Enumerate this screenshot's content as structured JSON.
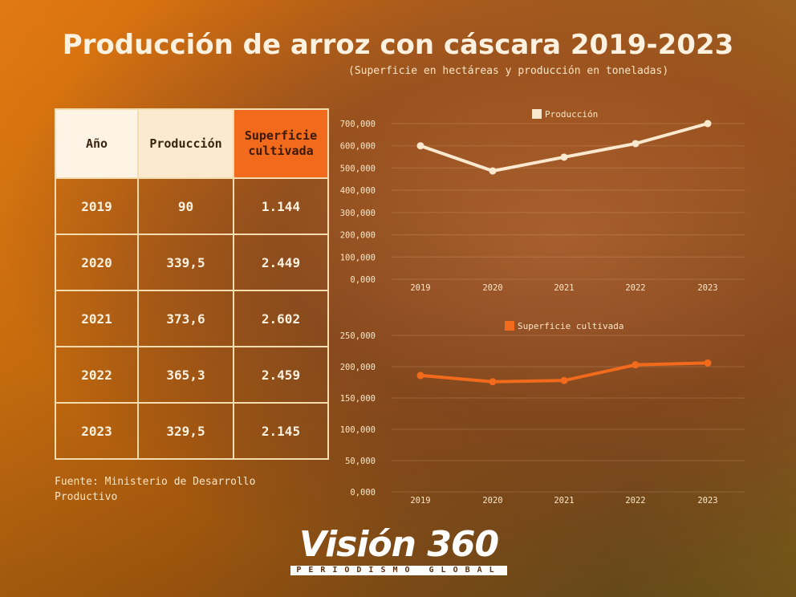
{
  "title": "Producción de arroz con cáscara 2019-2023",
  "subtitle": "(Superficie en hectáreas y producción en toneladas)",
  "table": {
    "headers": [
      "Año",
      "Producción",
      "Superficie cultivada"
    ],
    "rows": [
      [
        "2019",
        "90",
        "1.144"
      ],
      [
        "2020",
        "339,5",
        "2.449"
      ],
      [
        "2021",
        "373,6",
        "2.602"
      ],
      [
        "2022",
        "365,3",
        "2.459"
      ],
      [
        "2023",
        "329,5",
        "2.145"
      ]
    ]
  },
  "source": "Fuente: Ministerio de Desarrollo Productivo",
  "logo": {
    "name": "Visión 360",
    "tagline": "PERIODISMO GLOBAL"
  },
  "colors": {
    "produccion": "#fbe9cf",
    "superficie": "#f26a1b"
  },
  "chart_data": [
    {
      "type": "line",
      "legend": "Producción",
      "categories": [
        "2019",
        "2020",
        "2021",
        "2022",
        "2023"
      ],
      "values": [
        600000,
        487000,
        549000,
        610000,
        700000
      ],
      "ylim": [
        0,
        700000
      ],
      "yticks": [
        "0,000",
        "100,000",
        "200,000",
        "300,000",
        "400,000",
        "500,000",
        "600,000",
        "700,000"
      ],
      "grid": true,
      "legend_position": "top-center"
    },
    {
      "type": "line",
      "legend": "Superficie cultivada",
      "categories": [
        "2019",
        "2020",
        "2021",
        "2022",
        "2023"
      ],
      "values": [
        186000,
        176000,
        178000,
        203000,
        206000
      ],
      "ylim": [
        0,
        250000
      ],
      "yticks": [
        "0,000",
        "50,000",
        "100,000",
        "150,000",
        "200,000",
        "250,000"
      ],
      "grid": true,
      "legend_position": "top-center"
    }
  ]
}
